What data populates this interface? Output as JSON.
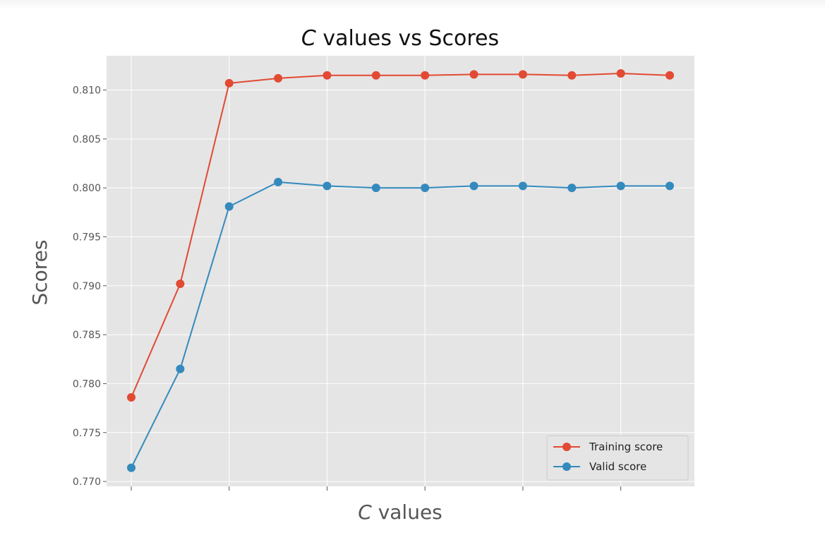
{
  "chart_data": {
    "type": "line",
    "title": {
      "italic": "C",
      "rest": " values vs Scores"
    },
    "xlabel": {
      "italic": "C",
      "rest": " values"
    },
    "ylabel": "Scores",
    "x": [
      0,
      1,
      2,
      3,
      4,
      5,
      6,
      7,
      8,
      9,
      10,
      11
    ],
    "x_tick_positions": [
      0,
      2,
      4,
      6,
      8,
      10
    ],
    "x_tick_labels": [
      "",
      "",
      "",
      "",
      "",
      ""
    ],
    "ylim": [
      0.7695,
      0.8135
    ],
    "y_ticks": [
      0.77,
      0.775,
      0.78,
      0.785,
      0.79,
      0.795,
      0.8,
      0.805,
      0.81
    ],
    "y_tick_labels": [
      "0.770",
      "0.775",
      "0.780",
      "0.785",
      "0.790",
      "0.795",
      "0.800",
      "0.805",
      "0.810"
    ],
    "grid": true,
    "style": "ggplot",
    "legend_position": "lower-right",
    "series": [
      {
        "name": "Training score",
        "color": "#E24A33",
        "values": [
          0.7786,
          0.7902,
          0.8107,
          0.8112,
          0.8115,
          0.8115,
          0.8115,
          0.8116,
          0.8116,
          0.8115,
          0.8117,
          0.8115
        ]
      },
      {
        "name": "Valid score",
        "color": "#348ABD",
        "values": [
          0.7714,
          0.7815,
          0.7981,
          0.8006,
          0.8002,
          0.8,
          0.8,
          0.8002,
          0.8002,
          0.8,
          0.8002,
          0.8002
        ]
      }
    ]
  }
}
